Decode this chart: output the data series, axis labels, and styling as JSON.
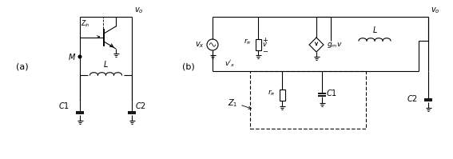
{
  "fig_width": 5.67,
  "fig_height": 1.99,
  "dpi": 100,
  "bg_color": "#ffffff",
  "line_color": "#000000",
  "line_width": 0.8
}
